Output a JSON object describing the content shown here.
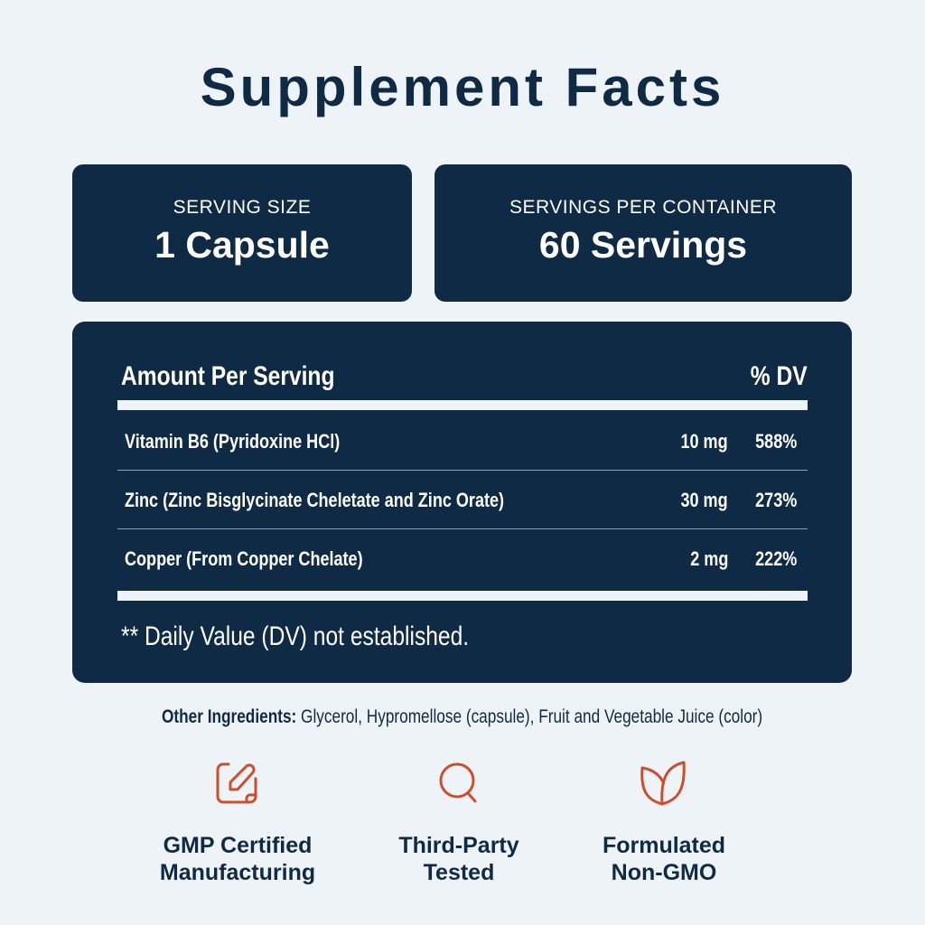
{
  "title": "Supplement Facts",
  "serving": {
    "label": "SERVING SIZE",
    "value": "1 Capsule"
  },
  "servings": {
    "label": "SERVINGS PER CONTAINER",
    "value": "60 Servings"
  },
  "table": {
    "header_left": "Amount Per Serving",
    "header_right": "% DV",
    "rows": [
      {
        "name": "Vitamin B6 (Pyridoxine HCl)",
        "amount": "10 mg",
        "dv": "588%"
      },
      {
        "name": "Zinc (Zinc Bisglycinate Cheletate and Zinc Orate)",
        "amount": "30 mg",
        "dv": "273%"
      },
      {
        "name": "Copper (From Copper Chelate)",
        "amount": "2 mg",
        "dv": "222%"
      }
    ],
    "footnote": "** Daily Value (DV) not established."
  },
  "other": {
    "label": "Other Ingredients:",
    "text": " Glycerol, Hypromellose (capsule), Fruit and Vegetable Juice (color)"
  },
  "badges": [
    {
      "icon": "edit-icon",
      "line1": "GMP Certified",
      "line2": "Manufacturing"
    },
    {
      "icon": "search-icon",
      "line1": "Third-Party",
      "line2": "Tested"
    },
    {
      "icon": "leaf-icon",
      "line1": "Formulated",
      "line2": "Non-GMO"
    }
  ],
  "colors": {
    "navy": "#0e2a44",
    "accent": "#cc4f2c",
    "background": "#eef3f8"
  }
}
